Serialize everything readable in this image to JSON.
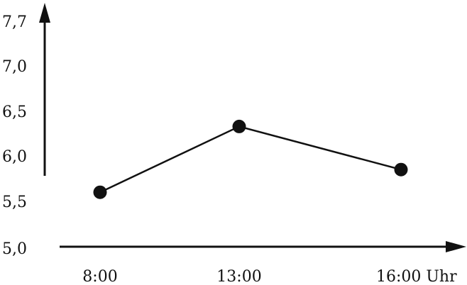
{
  "chart_data": {
    "type": "line",
    "title": "",
    "xlabel": "",
    "ylabel": "",
    "categories": [
      "8:00",
      "13:00",
      "16:00 Uhr"
    ],
    "y_ticks": [
      {
        "value": 7.7,
        "label": "7,7"
      },
      {
        "value": 7.0,
        "label": "7,0"
      },
      {
        "value": 6.5,
        "label": "6,5"
      },
      {
        "value": 6.0,
        "label": "6,0"
      },
      {
        "value": 5.5,
        "label": "5,5"
      },
      {
        "value": 5.0,
        "label": "5,0"
      }
    ],
    "ylim": [
      5.0,
      7.7
    ],
    "grid": false,
    "series": [
      {
        "values": [
          5.6,
          6.33,
          5.85
        ]
      }
    ],
    "colors": {
      "ink": "#111111"
    }
  }
}
